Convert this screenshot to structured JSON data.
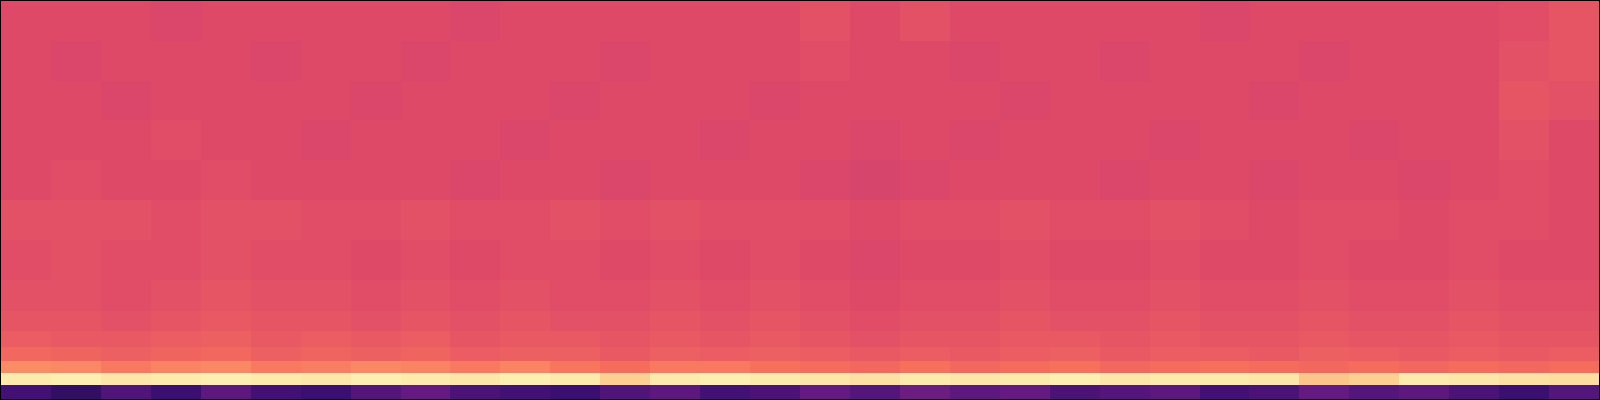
{
  "chart_data": {
    "type": "heatmap",
    "tick_labels": false,
    "xlim": [
      0,
      32
    ],
    "ylim": [
      0,
      100
    ],
    "zlim": [
      0,
      1
    ],
    "x": [
      0,
      1,
      2,
      3,
      4,
      5,
      6,
      7,
      8,
      9,
      10,
      11,
      12,
      13,
      14,
      15,
      16,
      17,
      18,
      19,
      20,
      21,
      22,
      23,
      24,
      25,
      26,
      27,
      28,
      29,
      30,
      31,
      32
    ],
    "y": [
      0,
      3.5,
      6.5,
      9.5,
      13,
      17,
      22,
      30,
      40,
      50,
      60,
      70,
      80,
      90,
      100
    ],
    "z": [
      [
        0.22,
        0.18,
        0.25,
        0.2,
        0.28,
        0.22,
        0.2,
        0.26,
        0.3,
        0.24,
        0.22,
        0.2,
        0.25,
        0.28,
        0.22,
        0.24,
        0.3,
        0.26,
        0.32,
        0.28,
        0.3,
        0.24,
        0.26,
        0.28,
        0.22,
        0.24,
        0.3,
        0.26,
        0.28,
        0.24,
        0.2,
        0.26
      ],
      [
        0.96,
        0.97,
        0.95,
        0.96,
        0.97,
        0.96,
        0.95,
        0.97,
        0.96,
        0.95,
        0.97,
        0.96,
        0.9,
        0.96,
        0.97,
        0.96,
        0.95,
        0.94,
        0.96,
        0.95,
        0.96,
        0.97,
        0.95,
        0.96,
        0.96,
        0.95,
        0.88,
        0.9,
        0.96,
        0.95,
        0.94,
        0.93
      ],
      [
        0.76,
        0.75,
        0.72,
        0.74,
        0.75,
        0.72,
        0.73,
        0.75,
        0.74,
        0.72,
        0.74,
        0.71,
        0.69,
        0.72,
        0.72,
        0.7,
        0.69,
        0.68,
        0.7,
        0.68,
        0.69,
        0.7,
        0.68,
        0.69,
        0.7,
        0.69,
        0.68,
        0.69,
        0.68,
        0.69,
        0.68,
        0.69
      ],
      [
        0.68,
        0.67,
        0.66,
        0.67,
        0.68,
        0.66,
        0.67,
        0.66,
        0.67,
        0.65,
        0.66,
        0.66,
        0.64,
        0.66,
        0.65,
        0.66,
        0.65,
        0.64,
        0.65,
        0.64,
        0.65,
        0.66,
        0.64,
        0.65,
        0.65,
        0.64,
        0.66,
        0.65,
        0.64,
        0.65,
        0.64,
        0.65
      ],
      [
        0.65,
        0.64,
        0.64,
        0.65,
        0.66,
        0.64,
        0.65,
        0.64,
        0.65,
        0.63,
        0.64,
        0.64,
        0.63,
        0.64,
        0.63,
        0.64,
        0.63,
        0.62,
        0.63,
        0.63,
        0.64,
        0.64,
        0.63,
        0.64,
        0.63,
        0.63,
        0.64,
        0.63,
        0.63,
        0.64,
        0.63,
        0.63
      ],
      [
        0.63,
        0.63,
        0.62,
        0.63,
        0.64,
        0.63,
        0.63,
        0.62,
        0.63,
        0.62,
        0.63,
        0.62,
        0.62,
        0.63,
        0.62,
        0.63,
        0.62,
        0.61,
        0.62,
        0.62,
        0.63,
        0.62,
        0.62,
        0.63,
        0.62,
        0.62,
        0.63,
        0.62,
        0.62,
        0.63,
        0.62,
        0.62
      ],
      [
        0.62,
        0.62,
        0.61,
        0.62,
        0.63,
        0.62,
        0.62,
        0.61,
        0.62,
        0.61,
        0.62,
        0.61,
        0.61,
        0.62,
        0.61,
        0.62,
        0.61,
        0.6,
        0.61,
        0.61,
        0.62,
        0.61,
        0.61,
        0.62,
        0.61,
        0.61,
        0.62,
        0.61,
        0.61,
        0.62,
        0.61,
        0.61
      ],
      [
        0.61,
        0.62,
        0.61,
        0.61,
        0.62,
        0.61,
        0.61,
        0.6,
        0.61,
        0.6,
        0.61,
        0.61,
        0.6,
        0.61,
        0.6,
        0.61,
        0.6,
        0.59,
        0.6,
        0.6,
        0.61,
        0.6,
        0.6,
        0.61,
        0.6,
        0.6,
        0.61,
        0.6,
        0.6,
        0.61,
        0.6,
        0.6
      ],
      [
        0.62,
        0.62,
        0.62,
        0.61,
        0.62,
        0.62,
        0.61,
        0.61,
        0.62,
        0.61,
        0.61,
        0.62,
        0.61,
        0.62,
        0.61,
        0.61,
        0.61,
        0.6,
        0.61,
        0.61,
        0.62,
        0.61,
        0.61,
        0.62,
        0.61,
        0.6,
        0.61,
        0.61,
        0.6,
        0.61,
        0.61,
        0.6
      ],
      [
        0.6,
        0.61,
        0.6,
        0.6,
        0.61,
        0.6,
        0.6,
        0.6,
        0.6,
        0.59,
        0.6,
        0.6,
        0.59,
        0.6,
        0.6,
        0.6,
        0.59,
        0.58,
        0.59,
        0.6,
        0.6,
        0.6,
        0.59,
        0.6,
        0.6,
        0.59,
        0.6,
        0.6,
        0.59,
        0.6,
        0.61,
        0.6
      ],
      [
        0.6,
        0.6,
        0.6,
        0.61,
        0.6,
        0.6,
        0.59,
        0.6,
        0.6,
        0.6,
        0.59,
        0.6,
        0.6,
        0.6,
        0.59,
        0.6,
        0.6,
        0.59,
        0.6,
        0.59,
        0.6,
        0.6,
        0.6,
        0.59,
        0.6,
        0.6,
        0.6,
        0.59,
        0.6,
        0.6,
        0.62,
        0.6
      ],
      [
        0.6,
        0.6,
        0.59,
        0.6,
        0.6,
        0.6,
        0.6,
        0.59,
        0.6,
        0.6,
        0.6,
        0.59,
        0.6,
        0.6,
        0.6,
        0.59,
        0.6,
        0.6,
        0.6,
        0.6,
        0.59,
        0.6,
        0.6,
        0.6,
        0.6,
        0.59,
        0.6,
        0.6,
        0.6,
        0.6,
        0.63,
        0.62
      ],
      [
        0.6,
        0.59,
        0.6,
        0.6,
        0.6,
        0.59,
        0.6,
        0.6,
        0.59,
        0.6,
        0.6,
        0.6,
        0.59,
        0.6,
        0.6,
        0.6,
        0.61,
        0.6,
        0.6,
        0.59,
        0.6,
        0.6,
        0.59,
        0.6,
        0.6,
        0.6,
        0.59,
        0.6,
        0.6,
        0.6,
        0.62,
        0.63
      ],
      [
        0.6,
        0.6,
        0.6,
        0.59,
        0.6,
        0.6,
        0.6,
        0.6,
        0.6,
        0.59,
        0.6,
        0.6,
        0.6,
        0.6,
        0.6,
        0.6,
        0.62,
        0.6,
        0.62,
        0.6,
        0.6,
        0.6,
        0.6,
        0.6,
        0.59,
        0.6,
        0.6,
        0.6,
        0.6,
        0.6,
        0.61,
        0.63
      ]
    ]
  }
}
